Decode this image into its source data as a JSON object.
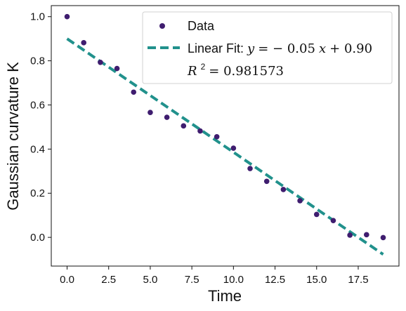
{
  "chart_data": {
    "type": "scatter",
    "x_label": "Time",
    "y_label": "Gaussian curvature  K",
    "x_lim": [
      -0.95,
      19.95
    ],
    "y_lim": [
      -0.13,
      1.05
    ],
    "x_ticks": [
      0.0,
      2.5,
      5.0,
      7.5,
      10.0,
      12.5,
      15.0,
      17.5
    ],
    "x_tick_labels": [
      "0.0",
      "2.5",
      "5.0",
      "7.5",
      "10.0",
      "12.5",
      "15.0",
      "17.5"
    ],
    "y_ticks": [
      0.0,
      0.2,
      0.4,
      0.6,
      0.8,
      1.0
    ],
    "y_tick_labels": [
      "0.0",
      "0.2",
      "0.4",
      "0.6",
      "0.8",
      "1.0"
    ],
    "series": [
      {
        "name": "Data",
        "kind": "scatter",
        "color": "#3f1d6f",
        "x": [
          0,
          1,
          2,
          3,
          4,
          5,
          6,
          7,
          8,
          9,
          10,
          11,
          12,
          13,
          14,
          15,
          16,
          17,
          18,
          19
        ],
        "y": [
          1.0,
          0.882,
          0.793,
          0.765,
          0.658,
          0.566,
          0.544,
          0.505,
          0.482,
          0.456,
          0.404,
          0.312,
          0.254,
          0.217,
          0.166,
          0.104,
          0.076,
          0.01,
          0.012,
          -0.001
        ]
      },
      {
        "name": "Linear Fit",
        "kind": "line",
        "style": "dashed",
        "color": "#21918c",
        "x": [
          0,
          19
        ],
        "y": [
          0.9,
          -0.077
        ]
      }
    ],
    "legend": {
      "position": "top-right",
      "entries": [
        {
          "series": "Data",
          "marker": "dot",
          "label": "Data"
        },
        {
          "series": "Linear Fit",
          "marker": "dash",
          "label_prefix": "Linear Fit: ",
          "equation": {
            "y": "y",
            "equals": " = ",
            "minus": "− ",
            "slope": "0.05",
            "x": "x",
            "plus": " + ",
            "intercept": "0.90"
          }
        },
        {
          "marker": "none",
          "r2": {
            "base": "R",
            "power": "2",
            "equals": " = ",
            "value": "0.981573"
          }
        }
      ]
    }
  }
}
